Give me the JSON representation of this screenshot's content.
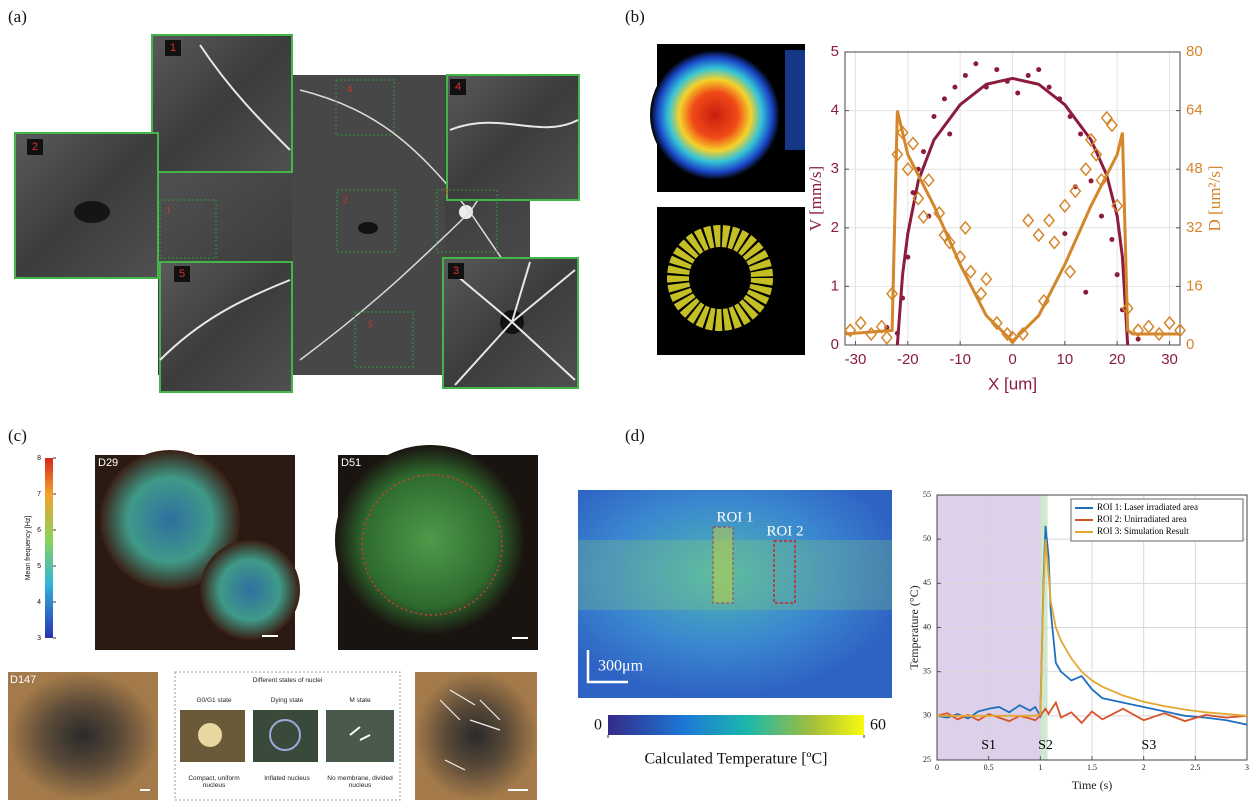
{
  "panel_labels": [
    "(a)",
    "(b)",
    "(c)",
    "(d)"
  ],
  "panel_a": {
    "tile_labels": [
      "1",
      "2",
      "3",
      "4",
      "5"
    ],
    "box_labels": [
      "1",
      "2",
      "3",
      "4",
      "5"
    ]
  },
  "panel_c": {
    "colorbar": {
      "label": "Mean frequency [Hz]",
      "lim": [
        3,
        8
      ],
      "ticks": [
        3,
        4,
        5,
        6,
        7,
        8
      ]
    },
    "image_labels": [
      "D29",
      "D51",
      "D147"
    ],
    "nuclei_table": {
      "title": "Different states of nuclei",
      "states": [
        "G0/G1 state",
        "Dying state",
        "M state"
      ],
      "descriptions": [
        "Compact, uniform nucleus",
        "Inflated nucleus",
        "No membrane, divided nucleus"
      ]
    }
  },
  "panel_d_image": {
    "roi_labels": [
      "ROI 1",
      "ROI 2"
    ],
    "scale_bar": "300μm",
    "colorbar": {
      "label": "Calculated Temperature [ºC]",
      "lim": [
        0,
        60
      ],
      "ticks": [
        0,
        60
      ]
    }
  },
  "chart_data": [
    {
      "type": "line",
      "xlabel": "X [um]",
      "ylabel": "V [mm/s]",
      "y2label": "D [um²/s]",
      "xlim": [
        -32,
        32
      ],
      "xticks": [
        -30,
        -20,
        -10,
        0,
        10,
        20,
        30
      ],
      "ylim": [
        0,
        5
      ],
      "yticks": [
        0,
        1,
        2,
        3,
        4,
        5
      ],
      "y2lim": [
        0,
        80
      ],
      "y2ticks": [
        0,
        16,
        32,
        48,
        64,
        80
      ],
      "ycolor": "#8b1c3c",
      "y2color": "#d4862a",
      "grid": true,
      "series": [
        {
          "style": "scatter",
          "marker": "circle",
          "color": "#8b1c3c",
          "x": [
            -24,
            -22,
            -21,
            -20,
            -19,
            -18,
            -17,
            -15,
            -13,
            -11,
            -9,
            -7,
            -5,
            -3,
            -1,
            1,
            3,
            5,
            7,
            9,
            11,
            13,
            15,
            17,
            19,
            20,
            21,
            24,
            -12,
            12,
            10,
            -16,
            14
          ],
          "values": [
            0.3,
            0.2,
            0.8,
            1.5,
            2.6,
            3.0,
            3.3,
            3.9,
            4.2,
            4.4,
            4.6,
            4.8,
            4.4,
            4.7,
            4.5,
            4.3,
            4.6,
            4.7,
            4.4,
            4.2,
            3.9,
            3.6,
            2.8,
            2.2,
            1.8,
            1.2,
            0.6,
            0.1,
            3.6,
            2.7,
            1.9,
            2.2,
            0.9
          ]
        },
        {
          "style": "line",
          "color": "#8b1c3c",
          "x": [
            -22,
            -21,
            -20,
            -18,
            -15,
            -10,
            -5,
            0,
            5,
            10,
            15,
            18,
            20,
            21,
            22
          ],
          "values": [
            0,
            1.2,
            1.9,
            2.8,
            3.5,
            4.1,
            4.45,
            4.55,
            4.45,
            4.1,
            3.5,
            2.9,
            2.2,
            1.5,
            0
          ]
        },
        {
          "style": "scatter",
          "marker": "diamond",
          "color": "#d4862a",
          "axis": "y2",
          "x": [
            -31,
            -29,
            -27,
            -25,
            -24,
            -23,
            -22,
            -21,
            -20,
            -19,
            -18,
            -17,
            -16,
            -14,
            -13,
            -12,
            -10,
            -9,
            -8,
            -6,
            -5,
            -3,
            -1,
            0,
            2,
            3,
            5,
            6,
            7,
            8,
            10,
            11,
            12,
            14,
            15,
            16,
            17,
            18,
            19,
            20,
            22,
            24,
            26,
            28,
            30,
            32
          ],
          "values": [
            4,
            6,
            3,
            5,
            2,
            14,
            52,
            58,
            48,
            55,
            40,
            35,
            45,
            36,
            30,
            28,
            24,
            32,
            20,
            14,
            18,
            6,
            3,
            2,
            3,
            34,
            30,
            12,
            34,
            28,
            38,
            20,
            42,
            48,
            56,
            52,
            45,
            62,
            60,
            38,
            10,
            4,
            5,
            3,
            6,
            4
          ]
        },
        {
          "style": "line",
          "color": "#d4862a",
          "axis": "y2",
          "x": [
            -32,
            -23,
            -22,
            -20,
            -15,
            -10,
            -5,
            0,
            5,
            10,
            15,
            20,
            21,
            22,
            23,
            32
          ],
          "values": [
            3,
            4,
            64,
            52,
            38,
            22,
            8,
            1,
            8,
            22,
            38,
            52,
            58,
            4,
            3,
            3
          ]
        }
      ]
    },
    {
      "type": "line",
      "xlabel": "Time (s)",
      "ylabel": "Temperature (°C)",
      "xlim": [
        0,
        3
      ],
      "xticks": [
        0,
        0.5,
        1,
        1.5,
        2,
        2.5,
        3
      ],
      "ylim": [
        25,
        55
      ],
      "yticks": [
        25,
        30,
        35,
        40,
        45,
        50,
        55
      ],
      "grid": true,
      "legend": "top-right",
      "spans": [
        {
          "x0": 0,
          "x1": 1,
          "color": "#dcd0ea"
        },
        {
          "x0": 1,
          "x1": 1.07,
          "color": "#cfe8cf"
        }
      ],
      "annotations": [
        {
          "text": "S1",
          "x": 0.5,
          "y": 26.6
        },
        {
          "text": "S2",
          "x": 1.05,
          "y": 26.6
        },
        {
          "text": "S3",
          "x": 2.05,
          "y": 26.6
        }
      ],
      "x": [
        0,
        0.1,
        0.2,
        0.3,
        0.4,
        0.5,
        0.6,
        0.7,
        0.8,
        0.9,
        0.95,
        1.0,
        1.03,
        1.05,
        1.08,
        1.1,
        1.15,
        1.2,
        1.3,
        1.4,
        1.5,
        1.6,
        1.8,
        2.0,
        2.2,
        2.4,
        2.6,
        2.8,
        3.0
      ],
      "series": [
        {
          "name": "ROI 1: Laser irradiated area",
          "color": "#1f6fc0",
          "style": "line",
          "values": [
            30,
            29.8,
            30.2,
            29.7,
            30.5,
            30.8,
            31,
            30.4,
            31.2,
            30.6,
            31,
            30,
            45,
            51.5,
            48,
            42,
            36,
            35,
            34,
            34.5,
            33,
            32,
            31.5,
            31,
            30.5,
            30,
            29.8,
            29.5,
            29
          ]
        },
        {
          "name": "ROI 2: Unirradiated area",
          "color": "#d9532a",
          "style": "line",
          "values": [
            30,
            30.3,
            29.6,
            30.1,
            29.5,
            30.2,
            29.8,
            29.4,
            30,
            29.7,
            29.5,
            30,
            30.5,
            30.8,
            30.2,
            30.6,
            31.5,
            29.8,
            30.4,
            29.2,
            30.5,
            29.6,
            30.8,
            29.5,
            30.3,
            29.4,
            30.1,
            29.8,
            30
          ]
        },
        {
          "name": "ROI 3: Simulation Result",
          "color": "#e3a72f",
          "style": "line",
          "values": [
            30,
            30,
            30,
            30,
            30,
            30,
            30,
            30,
            30,
            30,
            30,
            30.2,
            44,
            50,
            46,
            43,
            40,
            38.5,
            36.5,
            35,
            34,
            33.3,
            32.3,
            31.6,
            31.1,
            30.7,
            30.4,
            30.2,
            30
          ]
        }
      ]
    }
  ]
}
